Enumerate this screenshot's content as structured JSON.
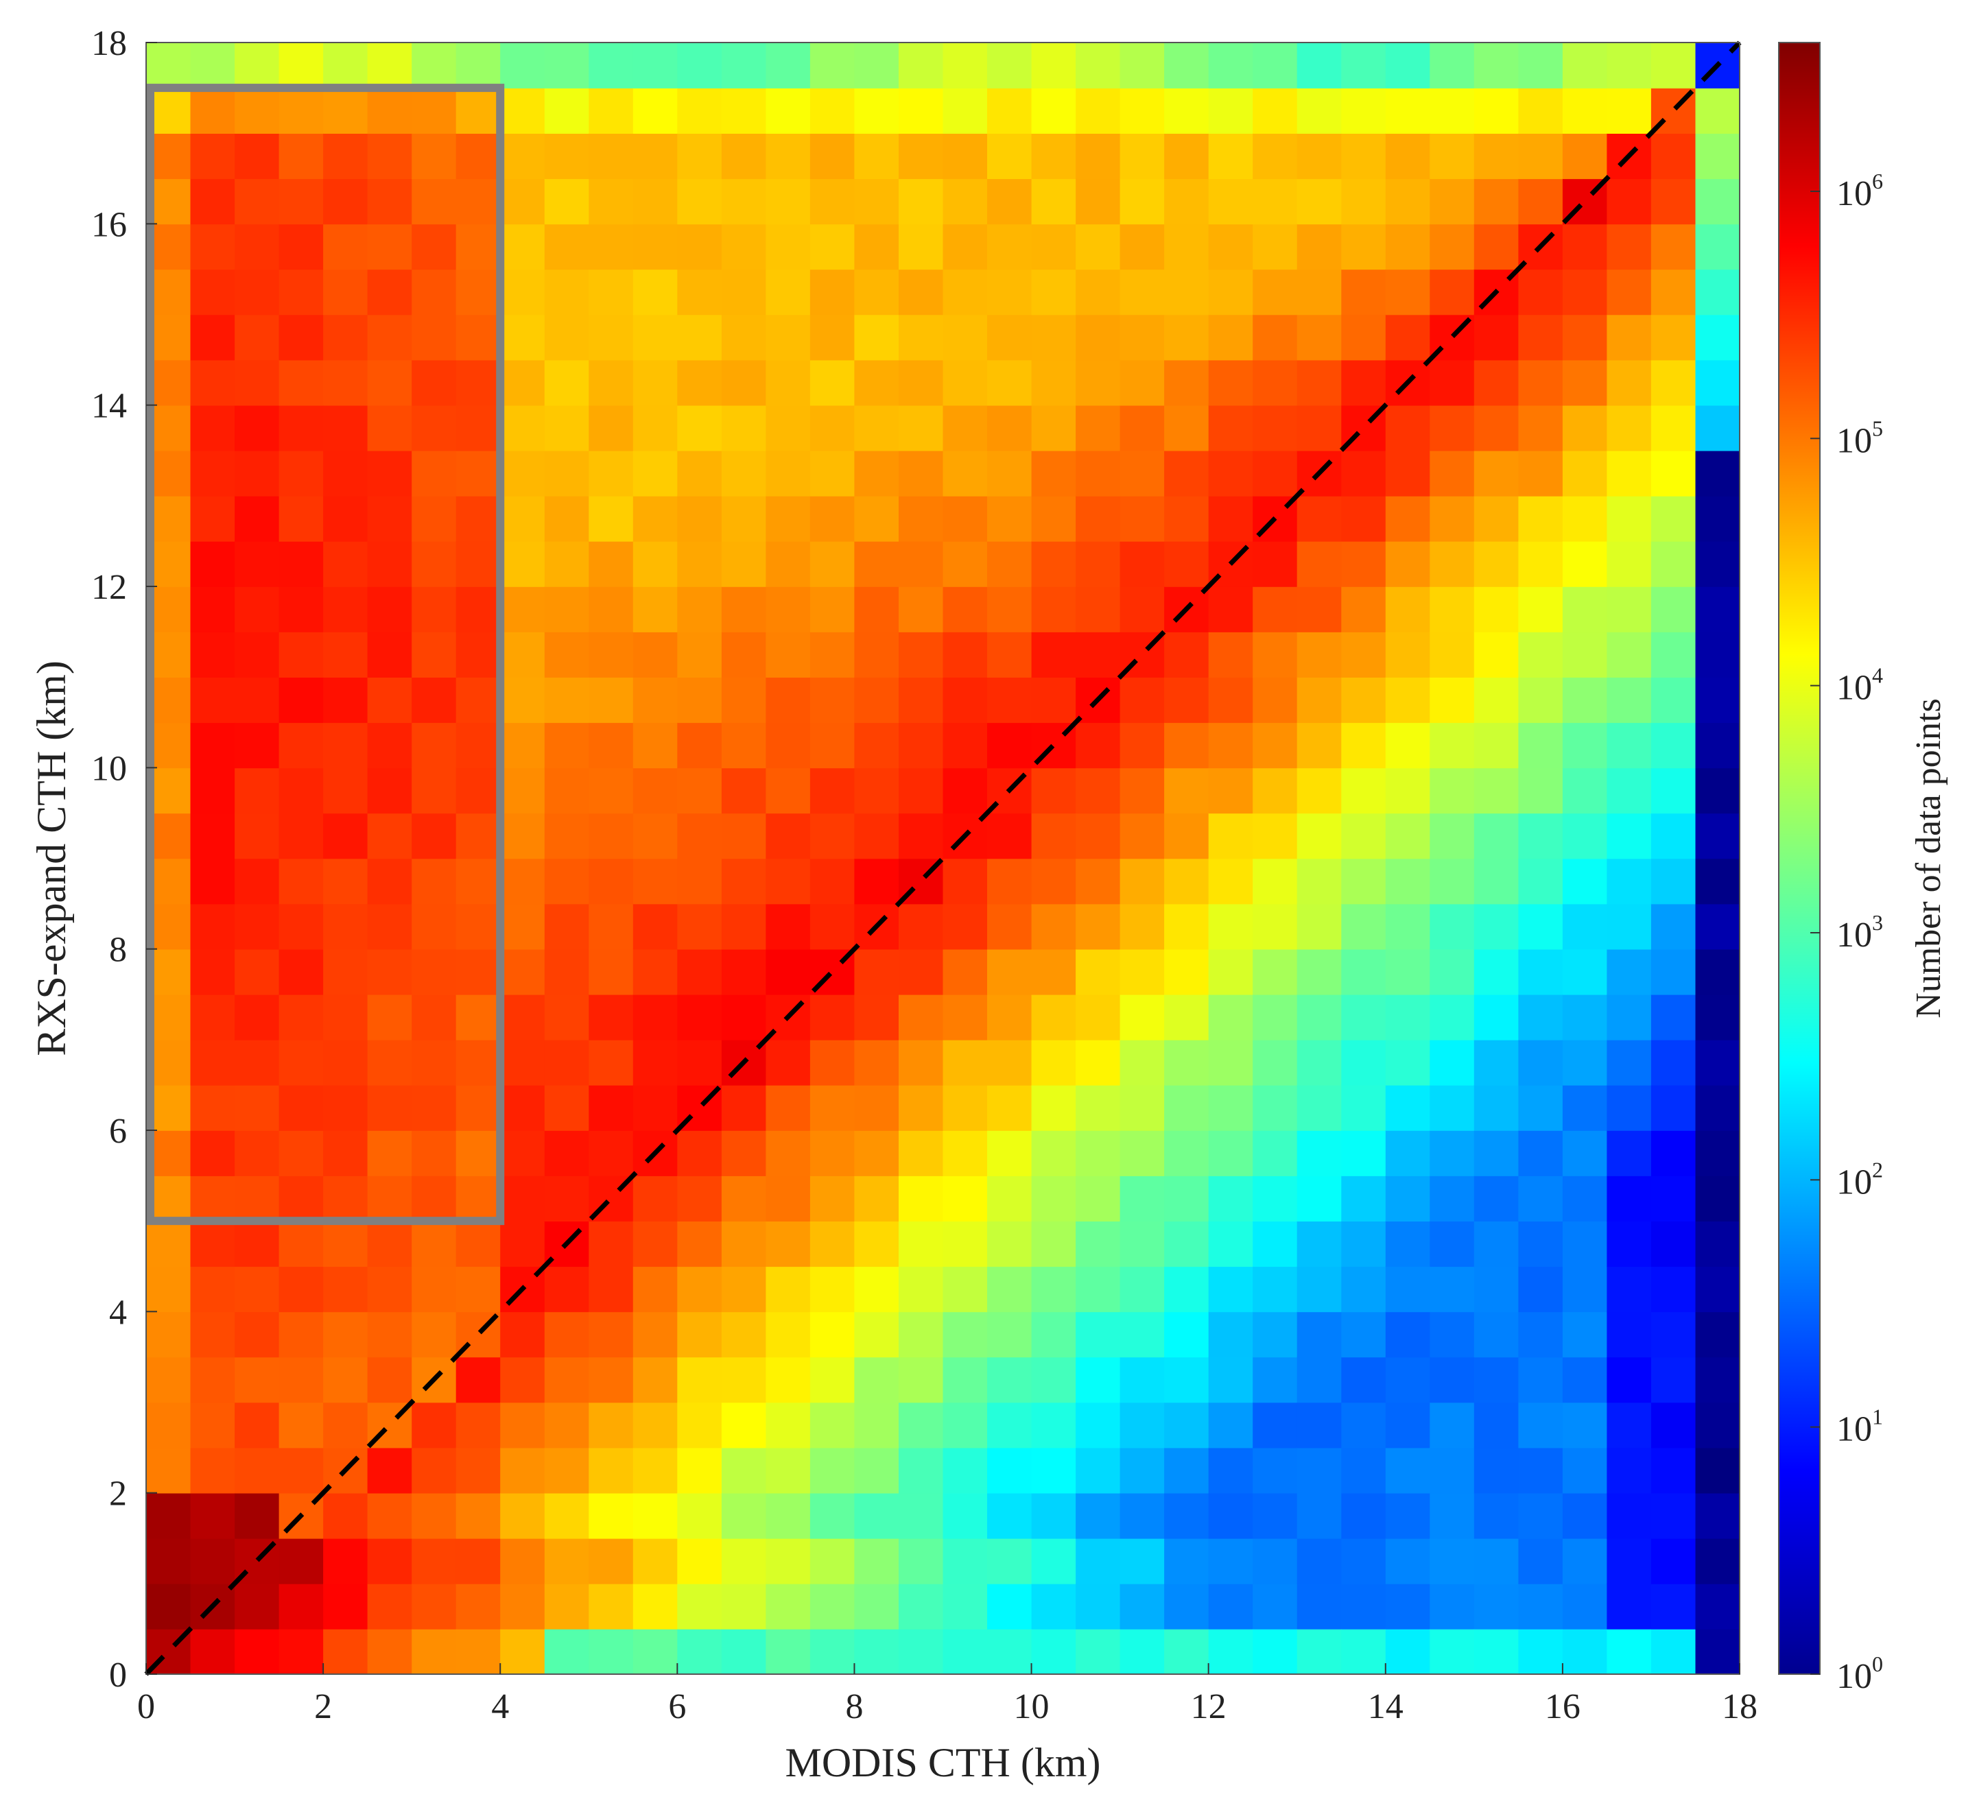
{
  "chart_data": {
    "type": "heatmap",
    "title": "",
    "xlabel": "MODIS CTH (km)",
    "ylabel": "RXS-expand CTH (km)",
    "xlim": [
      0,
      18
    ],
    "ylim": [
      0,
      18
    ],
    "xticks": [
      "0",
      "2",
      "4",
      "6",
      "8",
      "10",
      "12",
      "14",
      "16",
      "18"
    ],
    "yticks": [
      "0",
      "2",
      "4",
      "6",
      "8",
      "10",
      "12",
      "14",
      "16",
      "18"
    ],
    "bin_size_km": 0.5,
    "colorbar": {
      "label": "Number of data points",
      "scale": "log",
      "range": [
        1,
        4000000
      ],
      "ticks": [
        {
          "base": "10",
          "exp": "0"
        },
        {
          "base": "10",
          "exp": "1"
        },
        {
          "base": "10",
          "exp": "2"
        },
        {
          "base": "10",
          "exp": "3"
        },
        {
          "base": "10",
          "exp": "4"
        },
        {
          "base": "10",
          "exp": "5"
        },
        {
          "base": "10",
          "exp": "6"
        }
      ],
      "colormap": "jet"
    },
    "reference_line": {
      "style": "dashed",
      "color": "#000000",
      "from": [
        0,
        0
      ],
      "to": [
        18,
        18
      ]
    },
    "highlight_box": {
      "x_range": [
        0,
        4
      ],
      "y_range": [
        5,
        17.5
      ],
      "color": "#808080"
    },
    "log10_counts_model": {
      "resolution_km": 0.5,
      "anchor_points": [
        {
          "x": 1,
          "y": 0.5,
          "log10": 6.6
        },
        {
          "x": 2,
          "y": 1.2,
          "log10": 6.6
        },
        {
          "x": 1,
          "y": 12,
          "log10": 5.7
        },
        {
          "x": 10,
          "y": 11,
          "log10": 5.7
        },
        {
          "x": 16,
          "y": 8,
          "log10": 2.0
        },
        {
          "x": 17.75,
          "y": 6,
          "log10": 0.0
        },
        {
          "x": 17.75,
          "y": 17.75,
          "log10": 1.0
        }
      ]
    }
  }
}
